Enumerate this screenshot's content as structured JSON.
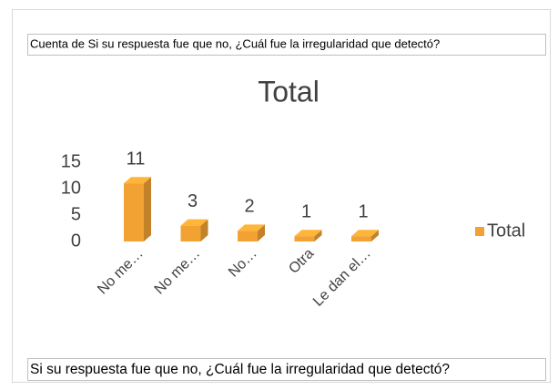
{
  "filter_label": "Cuenta de Si su respuesta fue que no, ¿Cuál fue la irregularidad que detectó?",
  "field_label": "Si su respuesta fue que no, ¿Cuál fue la irregularidad que detectó?",
  "chart_data": {
    "type": "bar",
    "title": "Total",
    "categories": [
      "No me…",
      "No me…",
      "No…",
      "Otra",
      "Le dan el…"
    ],
    "series": [
      {
        "name": "Total",
        "color": "#f2a233",
        "values": [
          11,
          3,
          2,
          1,
          1
        ]
      }
    ],
    "ylim": [
      0,
      15
    ],
    "yticks": [
      0,
      5,
      10,
      15
    ],
    "grid": false,
    "legend": "right"
  }
}
